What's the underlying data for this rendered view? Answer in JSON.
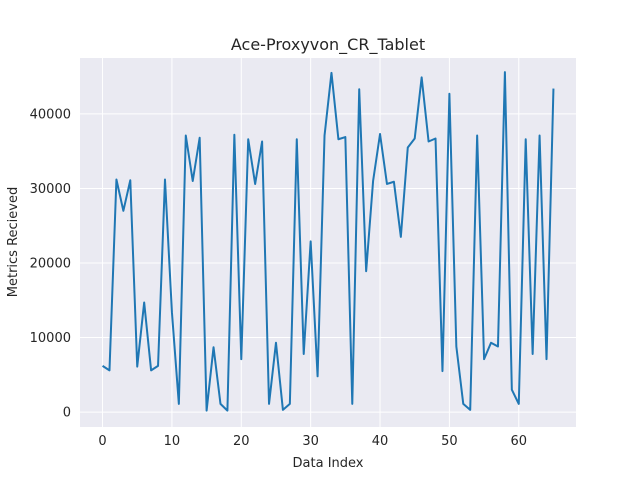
{
  "chart_data": {
    "type": "line",
    "title": "Ace-Proxyvon_CR_Tablet",
    "xlabel": "Data Index",
    "ylabel": "Metrics Recieved",
    "xlim": [
      -3.25,
      68.25
    ],
    "ylim": [
      -2000,
      47500
    ],
    "xticks": [
      0,
      10,
      20,
      30,
      40,
      50,
      60
    ],
    "yticks": [
      0,
      10000,
      20000,
      30000,
      40000
    ],
    "grid": true,
    "legend": "none",
    "colors": {
      "background": "#eaeaf2",
      "grid": "#ffffff",
      "line": "#1f77b4"
    },
    "series": [
      {
        "x": [
          0,
          1,
          2,
          3,
          4,
          5,
          6,
          7,
          8,
          9,
          10,
          11,
          12,
          13,
          14,
          15,
          16,
          17,
          18,
          19,
          20,
          21,
          22,
          23,
          24,
          25,
          26,
          27,
          28,
          29,
          30,
          31,
          32,
          33,
          34,
          35,
          36,
          37,
          38,
          39,
          40,
          41,
          42,
          43,
          44,
          45,
          46,
          47,
          48,
          49,
          50,
          51,
          52,
          53,
          54,
          55,
          56,
          57,
          58,
          59,
          60,
          61,
          62,
          63,
          64,
          65
        ],
        "y": [
          6200,
          5600,
          31200,
          27000,
          31100,
          6100,
          14700,
          5600,
          6200,
          31200,
          13400,
          1100,
          37100,
          31000,
          36800,
          200,
          8700,
          1100,
          200,
          37200,
          7100,
          36600,
          30600,
          36300,
          1100,
          9300,
          300,
          1100,
          36600,
          7800,
          22900,
          4800,
          37100,
          45500,
          36600,
          36900,
          1100,
          43300,
          18900,
          31000,
          37300,
          30600,
          30900,
          23500,
          35500,
          36700,
          44900,
          36300,
          36700,
          5500,
          42700,
          8800,
          1100,
          300,
          37100,
          7100,
          9300,
          8800,
          45600,
          3000,
          1100,
          36600,
          7800,
          37100,
          7100,
          43400
        ]
      }
    ]
  }
}
